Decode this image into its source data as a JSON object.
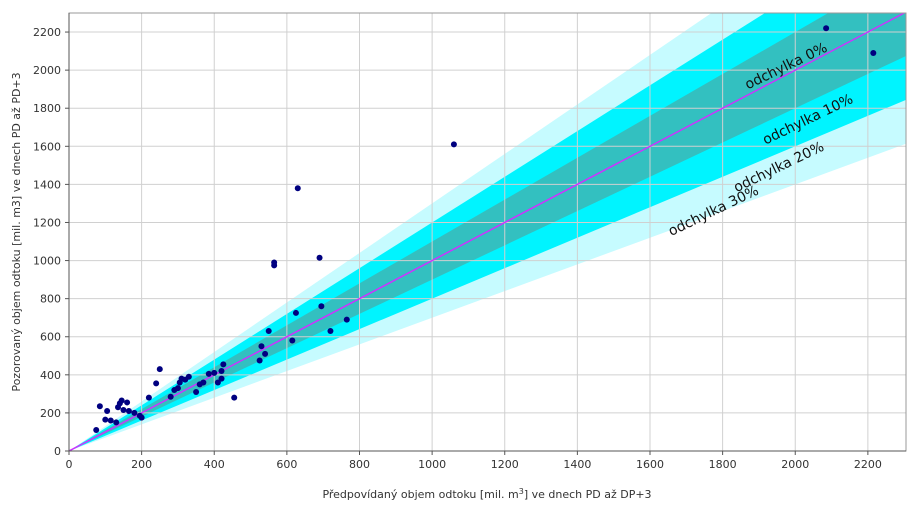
{
  "chart_data": {
    "type": "scatter",
    "title": "",
    "xlabel": "Předpovídaný objem odtoku [mil. m³] ve dnech PD až DP+3",
    "xlabel_parts": [
      "Předpovídaný objem odtoku [mil. m",
      "3",
      "] ve dnech PD až DP+3"
    ],
    "ylabel": "Pozorovaný objem odtoku [mil. m3] ve dnech PD až PD+3",
    "xlim": [
      0,
      2305
    ],
    "ylim": [
      0,
      2300
    ],
    "xticks": [
      0,
      200,
      400,
      600,
      800,
      1000,
      1200,
      1400,
      1600,
      1800,
      2000,
      2200
    ],
    "yticks": [
      0,
      200,
      400,
      600,
      800,
      1000,
      1200,
      1400,
      1600,
      1800,
      2000,
      2200
    ],
    "grid": true,
    "colors": {
      "points": "#000080",
      "line": "#cc33ff",
      "band10": "#33c0c0",
      "band20": "#00f4ff",
      "band30": "#c6fbff",
      "grid": "#d0d0d0"
    },
    "bands": [
      {
        "deviation": 0.3,
        "label": "odchylka 30%"
      },
      {
        "deviation": 0.2,
        "label": "odchylka 20%"
      },
      {
        "deviation": 0.1,
        "label": "odchylka 10%"
      },
      {
        "deviation": 0.0,
        "label": "odchylka 0%"
      }
    ],
    "points": [
      [
        75,
        110
      ],
      [
        85,
        235
      ],
      [
        100,
        165
      ],
      [
        105,
        210
      ],
      [
        115,
        160
      ],
      [
        130,
        150
      ],
      [
        135,
        230
      ],
      [
        140,
        250
      ],
      [
        145,
        265
      ],
      [
        150,
        215
      ],
      [
        160,
        255
      ],
      [
        165,
        210
      ],
      [
        180,
        200
      ],
      [
        195,
        185
      ],
      [
        200,
        175
      ],
      [
        220,
        280
      ],
      [
        240,
        355
      ],
      [
        250,
        430
      ],
      [
        280,
        285
      ],
      [
        290,
        320
      ],
      [
        300,
        330
      ],
      [
        305,
        360
      ],
      [
        310,
        380
      ],
      [
        320,
        375
      ],
      [
        330,
        390
      ],
      [
        350,
        310
      ],
      [
        360,
        350
      ],
      [
        370,
        360
      ],
      [
        385,
        405
      ],
      [
        400,
        410
      ],
      [
        410,
        360
      ],
      [
        420,
        380
      ],
      [
        420,
        420
      ],
      [
        425,
        455
      ],
      [
        455,
        280
      ],
      [
        525,
        475
      ],
      [
        530,
        550
      ],
      [
        540,
        510
      ],
      [
        550,
        630
      ],
      [
        565,
        990
      ],
      [
        565,
        975
      ],
      [
        615,
        580
      ],
      [
        625,
        725
      ],
      [
        630,
        1380
      ],
      [
        690,
        1015
      ],
      [
        695,
        760
      ],
      [
        720,
        630
      ],
      [
        765,
        690
      ],
      [
        1060,
        1610
      ],
      [
        2085,
        2220
      ],
      [
        2215,
        2090
      ]
    ]
  }
}
